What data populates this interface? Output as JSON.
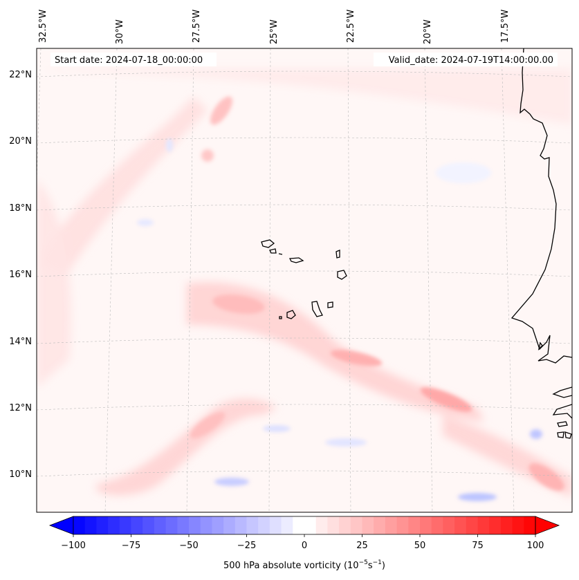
{
  "map": {
    "start_date_label": "Start date: 2024-07-18_00:00:00",
    "valid_date_label": "Valid_date: 2024-07-19T14:00:00.00",
    "longitude_labels": [
      "32.5°W",
      "30°W",
      "27.5°W",
      "25°W",
      "22.5°W",
      "20°W",
      "17.5°W"
    ],
    "latitude_labels": [
      "22°N",
      "20°N",
      "18°N",
      "16°N",
      "14°N",
      "12°N",
      "10°N"
    ]
  },
  "colorbar": {
    "ticks": [
      "−100",
      "−75",
      "−50",
      "−25",
      "0",
      "25",
      "50",
      "75",
      "100"
    ],
    "label_prefix": "500 hPa absolute vorticity (10",
    "label_exp1": "−5",
    "label_mid": "s",
    "label_exp2": "−1",
    "label_suffix": ")",
    "min": -100,
    "max": 100,
    "low_color": "#0000ff",
    "mid_color": "#ffffff",
    "high_color": "#ff0000"
  }
}
